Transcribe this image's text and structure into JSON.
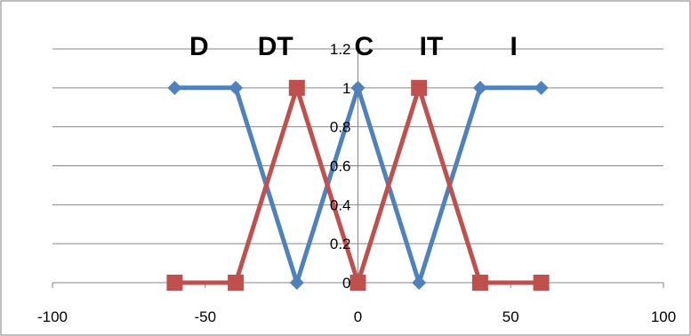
{
  "chart_data": {
    "type": "line",
    "xlim": [
      -100,
      100
    ],
    "ylim": [
      0,
      1.2
    ],
    "x_ticks": [
      -100,
      -50,
      0,
      50,
      100
    ],
    "x_tick_labels": [
      "-100",
      "-50",
      "0",
      "50",
      "100"
    ],
    "y_ticks": [
      0,
      0.2,
      0.4,
      0.6,
      0.8,
      1,
      1.2
    ],
    "y_tick_labels": [
      "0",
      "0.2",
      "0.4",
      "0.6",
      "0.8",
      "1",
      "1.2"
    ],
    "y_axis_at_x": 0,
    "grid": true,
    "legend": "none",
    "series": [
      {
        "color": "#4f81bd",
        "marker": "diamond",
        "points": [
          [
            -60,
            1
          ],
          [
            -40,
            1
          ],
          [
            -20,
            0
          ],
          [
            0,
            1
          ],
          [
            20,
            0
          ],
          [
            40,
            1
          ],
          [
            60,
            1
          ]
        ]
      },
      {
        "color": "#c0504d",
        "marker": "square",
        "points": [
          [
            -60,
            0
          ],
          [
            -40,
            0
          ],
          [
            -20,
            1
          ],
          [
            0,
            0
          ],
          [
            20,
            1
          ],
          [
            40,
            0
          ],
          [
            60,
            0
          ]
        ]
      }
    ],
    "annotations": [
      {
        "text": "D",
        "x": -52
      },
      {
        "text": "DT",
        "x": -27
      },
      {
        "text": "C",
        "x": 2
      },
      {
        "text": "IT",
        "x": 24
      },
      {
        "text": "I",
        "x": 51
      }
    ]
  }
}
